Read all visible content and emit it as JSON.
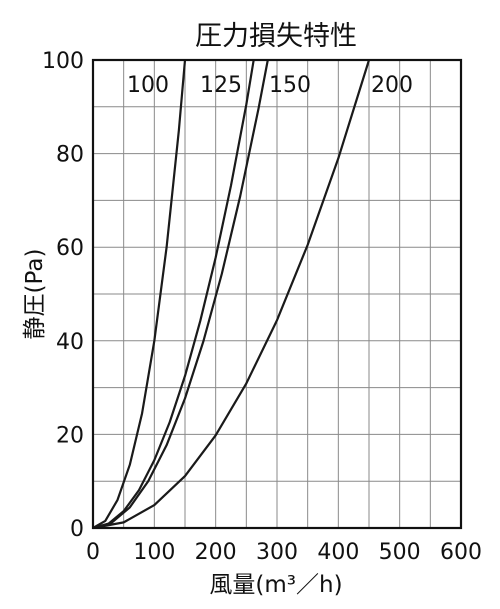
{
  "chart_data": {
    "type": "line",
    "title": "圧力損失特性",
    "xlabel": "風量(m³／h)",
    "ylabel": "静圧(Pa)",
    "xlim": [
      0,
      600
    ],
    "ylim": [
      0,
      100
    ],
    "x_ticks": [
      "0",
      "100",
      "200",
      "300",
      "400",
      "500",
      "600"
    ],
    "y_ticks": [
      "0",
      "20",
      "40",
      "60",
      "80",
      "100"
    ],
    "grid": true,
    "legend": "inline labels at top of curves",
    "line_color": "#1a1a1a",
    "series": [
      {
        "name": "100",
        "x": [
          0,
          20,
          40,
          60,
          80,
          100,
          120,
          140,
          150
        ],
        "y": [
          0,
          1.5,
          6.0,
          13.5,
          24.5,
          40.0,
          60.0,
          85.0,
          100.0
        ]
      },
      {
        "name": "125",
        "x": [
          0,
          25,
          50,
          75,
          100,
          125,
          150,
          175,
          200,
          225,
          250,
          262
        ],
        "y": [
          0,
          0.9,
          3.6,
          8.1,
          14.5,
          22.6,
          32.5,
          44.3,
          57.8,
          73.2,
          90.5,
          100.0
        ]
      },
      {
        "name": "150",
        "x": [
          0,
          30,
          60,
          90,
          120,
          150,
          180,
          210,
          240,
          270,
          285
        ],
        "y": [
          0,
          1.1,
          4.4,
          10.0,
          17.7,
          27.7,
          39.9,
          54.3,
          70.9,
          89.7,
          100.0
        ]
      },
      {
        "name": "200",
        "x": [
          0,
          50,
          100,
          150,
          200,
          250,
          300,
          350,
          400,
          450
        ],
        "y": [
          0,
          1.2,
          4.9,
          11.1,
          19.8,
          30.9,
          44.4,
          60.5,
          79.0,
          100.0
        ]
      }
    ]
  }
}
